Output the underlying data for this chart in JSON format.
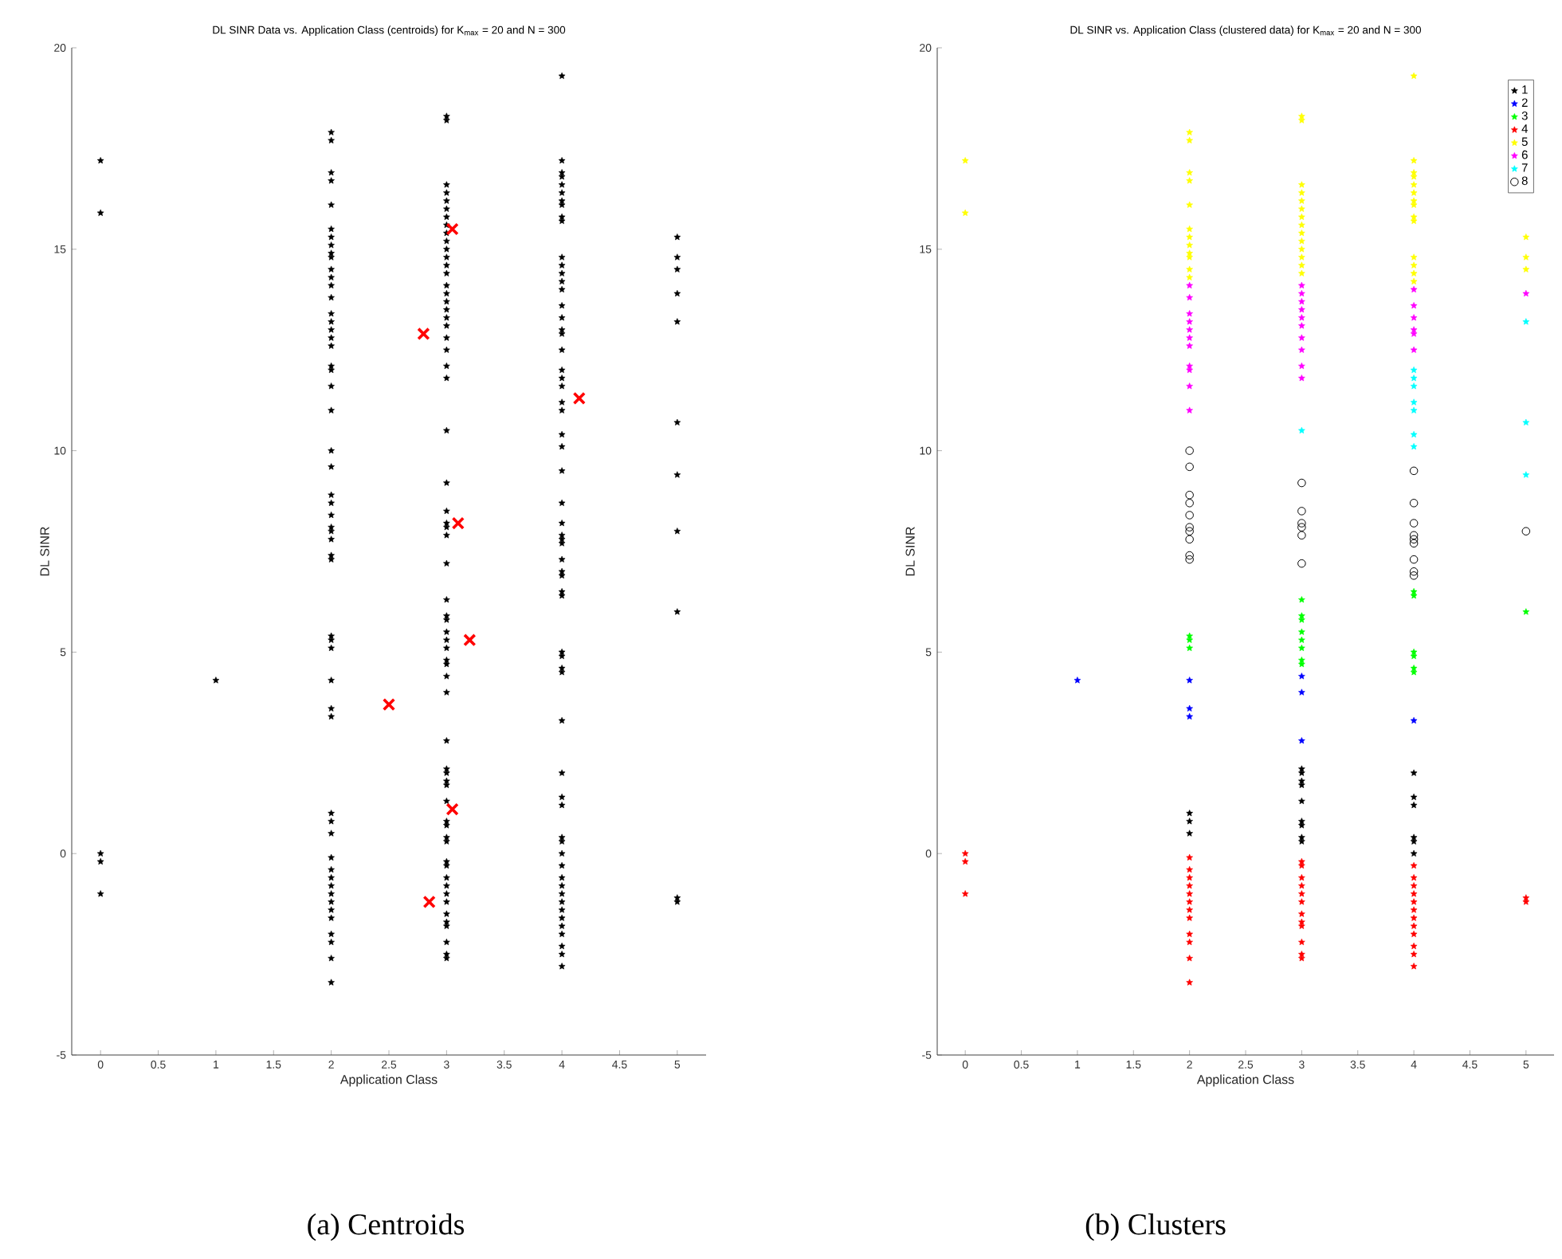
{
  "chart_data": [
    {
      "type": "scatter",
      "title": "DL SINR Data vs. Application Class (centroids) for K$_{max}$ = 20 and N = 300",
      "xlabel": "Application Class",
      "ylabel": "DL SINR",
      "annotations": [
        "(a) Centroids"
      ],
      "xlim": [
        -0.25,
        5.25
      ],
      "ylim": [
        -5,
        20
      ],
      "xticks": [
        0,
        0.5,
        1,
        1.5,
        2,
        2.5,
        3,
        3.5,
        4,
        4.5,
        5
      ],
      "yticks": [
        -5,
        0,
        5,
        10,
        15,
        20
      ],
      "series": [
        {
          "color": "#000000",
          "marker": "star",
          "x": [
            0,
            0,
            0,
            0,
            0
          ],
          "values": [
            17.2,
            15.9,
            0.0,
            -0.2,
            -1.0
          ]
        },
        {
          "color": "#000000",
          "marker": "star",
          "x": [
            1
          ],
          "values": [
            4.3
          ]
        },
        {
          "color": "#000000",
          "marker": "star",
          "x": [
            2,
            2,
            2,
            2,
            2,
            2,
            2,
            2,
            2,
            2,
            2,
            2,
            2,
            2,
            2,
            2,
            2,
            2,
            2,
            2,
            2,
            2,
            2,
            2,
            2,
            2,
            2,
            2,
            2,
            2,
            2,
            2,
            2,
            2,
            2,
            2,
            2,
            2,
            2,
            2,
            2,
            2,
            2,
            2,
            2,
            2,
            2,
            2,
            2,
            2,
            2,
            2,
            2,
            2
          ],
          "values": [
            17.9,
            17.7,
            16.9,
            16.7,
            16.1,
            15.5,
            15.3,
            15.1,
            14.9,
            14.8,
            14.5,
            14.3,
            14.1,
            13.8,
            13.4,
            13.2,
            13.0,
            12.8,
            12.6,
            12.1,
            12.0,
            11.6,
            11.0,
            10.0,
            9.6,
            8.9,
            8.7,
            8.4,
            8.1,
            8.0,
            7.8,
            7.4,
            7.3,
            5.4,
            5.3,
            5.1,
            4.3,
            3.6,
            3.4,
            1.0,
            0.8,
            0.5,
            -0.1,
            -0.4,
            -0.6,
            -0.8,
            -1.0,
            -1.2,
            -1.4,
            -1.6,
            -2.0,
            -2.2,
            -2.6,
            -3.2
          ]
        },
        {
          "color": "#000000",
          "marker": "star",
          "x": [
            3,
            3,
            3,
            3,
            3,
            3,
            3,
            3,
            3,
            3,
            3,
            3,
            3,
            3,
            3,
            3,
            3,
            3,
            3,
            3,
            3,
            3,
            3,
            3,
            3,
            3,
            3,
            3,
            3,
            3,
            3,
            3,
            3,
            3,
            3,
            3,
            3,
            3,
            3,
            3,
            3,
            3,
            3,
            3,
            3,
            3,
            3,
            3,
            3,
            3,
            3,
            3,
            3,
            3,
            3,
            3,
            3,
            3,
            3,
            3,
            3,
            3,
            3
          ],
          "values": [
            18.3,
            18.2,
            16.6,
            16.4,
            16.2,
            16.0,
            15.8,
            15.6,
            15.4,
            15.2,
            15.0,
            14.8,
            14.6,
            14.4,
            14.1,
            13.9,
            13.7,
            13.5,
            13.3,
            13.1,
            12.8,
            12.5,
            12.1,
            11.8,
            10.5,
            9.2,
            8.5,
            8.2,
            8.1,
            7.9,
            7.2,
            6.3,
            5.9,
            5.8,
            5.5,
            5.3,
            5.1,
            4.8,
            4.7,
            4.4,
            4.0,
            2.8,
            2.1,
            2.0,
            1.8,
            1.7,
            1.3,
            0.8,
            0.7,
            0.4,
            0.3,
            -0.2,
            -0.3,
            -0.6,
            -0.8,
            -1.0,
            -1.2,
            -1.5,
            -1.7,
            -1.8,
            -2.2,
            -2.5,
            -2.6
          ]
        },
        {
          "color": "#000000",
          "marker": "star",
          "x": [
            4,
            4,
            4,
            4,
            4,
            4,
            4,
            4,
            4,
            4,
            4,
            4,
            4,
            4,
            4,
            4,
            4,
            4,
            4,
            4,
            4,
            4,
            4,
            4,
            4,
            4,
            4,
            4,
            4,
            4,
            4,
            4,
            4,
            4,
            4,
            4,
            4,
            4,
            4,
            4,
            4,
            4,
            4,
            4,
            4,
            4,
            4,
            4,
            4,
            4,
            4,
            4,
            4,
            4,
            4,
            4,
            4,
            4,
            4,
            4,
            4
          ],
          "values": [
            19.3,
            17.2,
            16.9,
            16.8,
            16.6,
            16.4,
            16.2,
            16.1,
            15.8,
            15.7,
            14.8,
            14.6,
            14.4,
            14.2,
            14.0,
            13.6,
            13.3,
            13.0,
            12.9,
            12.5,
            12.0,
            11.8,
            11.6,
            11.2,
            11.0,
            10.4,
            10.1,
            9.5,
            8.7,
            8.2,
            7.9,
            7.8,
            7.7,
            7.3,
            7.0,
            6.9,
            6.5,
            6.4,
            5.0,
            4.9,
            4.6,
            4.5,
            3.3,
            2.0,
            1.4,
            1.2,
            0.4,
            0.3,
            0.0,
            -0.3,
            -0.6,
            -0.8,
            -1.0,
            -1.2,
            -1.4,
            -1.6,
            -1.8,
            -2.0,
            -2.3,
            -2.5,
            -2.8
          ]
        },
        {
          "color": "#000000",
          "marker": "star",
          "x": [
            5,
            5,
            5,
            5,
            5,
            5,
            5,
            5,
            5,
            5,
            5
          ],
          "values": [
            15.3,
            14.8,
            14.5,
            13.9,
            13.2,
            10.7,
            9.4,
            8.0,
            6.0,
            -1.1,
            -1.2
          ]
        },
        {
          "color": "#ff0000",
          "marker": "cross",
          "x": [
            3.05,
            2.8,
            4.15,
            3.1,
            3.2,
            2.5,
            3.05,
            2.85
          ],
          "values": [
            15.5,
            12.9,
            11.3,
            8.2,
            5.3,
            3.7,
            1.1,
            -1.2
          ]
        }
      ]
    },
    {
      "type": "scatter",
      "title": "DL SINR vs. Application Class (clustered data) for K$_{max}$ = 20 and N = 300",
      "xlabel": "Application Class",
      "ylabel": "DL SINR",
      "annotations": [
        "(b) Clusters"
      ],
      "legend": "top right",
      "xlim": [
        -0.25,
        5.25
      ],
      "ylim": [
        -5,
        20
      ],
      "xticks": [
        0,
        0.5,
        1,
        1.5,
        2,
        2.5,
        3,
        3.5,
        4,
        4.5,
        5
      ],
      "yticks": [
        -5,
        0,
        5,
        10,
        15,
        20
      ],
      "series": [
        {
          "name": "1",
          "color": "#000000",
          "marker": "star",
          "x": [
            2,
            2,
            2,
            3,
            3,
            3,
            3,
            3,
            3,
            3,
            3,
            3,
            4,
            4,
            4,
            4,
            4,
            4
          ],
          "values": [
            1.0,
            0.8,
            0.5,
            2.1,
            2.0,
            1.8,
            1.7,
            1.3,
            0.8,
            0.7,
            0.4,
            0.3,
            2.0,
            1.4,
            1.2,
            0.4,
            0.3,
            0.0
          ]
        },
        {
          "name": "2",
          "color": "#0000ff",
          "marker": "star",
          "x": [
            1,
            2,
            2,
            2,
            3,
            3,
            3,
            4
          ],
          "values": [
            4.3,
            4.3,
            3.6,
            3.4,
            4.4,
            4.0,
            2.8,
            3.3
          ]
        },
        {
          "name": "3",
          "color": "#00ff00",
          "marker": "star",
          "x": [
            2,
            2,
            2,
            3,
            3,
            3,
            3,
            3,
            3,
            3,
            3,
            4,
            4,
            4,
            4,
            4,
            4,
            5
          ],
          "values": [
            5.4,
            5.3,
            5.1,
            6.3,
            5.9,
            5.8,
            5.5,
            5.3,
            5.1,
            4.8,
            4.7,
            6.5,
            6.4,
            5.0,
            4.9,
            4.6,
            4.5,
            6.0
          ]
        },
        {
          "name": "4",
          "color": "#ff0000",
          "marker": "star",
          "x": [
            0,
            0,
            0,
            2,
            2,
            2,
            2,
            2,
            2,
            2,
            2,
            2,
            2,
            2,
            2,
            3,
            3,
            3,
            3,
            3,
            3,
            3,
            3,
            3,
            3,
            3,
            3,
            4,
            4,
            4,
            4,
            4,
            4,
            4,
            4,
            4,
            4,
            4,
            4,
            5,
            5
          ],
          "values": [
            0.0,
            -0.2,
            -1.0,
            -0.1,
            -0.4,
            -0.6,
            -0.8,
            -1.0,
            -1.2,
            -1.4,
            -1.6,
            -2.0,
            -2.2,
            -2.6,
            -3.2,
            -0.2,
            -0.3,
            -0.6,
            -0.8,
            -1.0,
            -1.2,
            -1.5,
            -1.7,
            -1.8,
            -2.2,
            -2.5,
            -2.6,
            -0.3,
            -0.6,
            -0.8,
            -1.0,
            -1.2,
            -1.4,
            -1.6,
            -1.8,
            -2.0,
            -2.3,
            -2.5,
            -2.8,
            -1.1,
            -1.2
          ]
        },
        {
          "name": "5",
          "color": "#ffff00",
          "marker": "star",
          "x": [
            0,
            0,
            2,
            2,
            2,
            2,
            2,
            2,
            2,
            2,
            2,
            2,
            2,
            2,
            3,
            3,
            3,
            3,
            3,
            3,
            3,
            3,
            3,
            3,
            3,
            3,
            3,
            3,
            4,
            4,
            4,
            4,
            4,
            4,
            4,
            4,
            4,
            4,
            4,
            4,
            4,
            4,
            5,
            5,
            5
          ],
          "values": [
            17.2,
            15.9,
            17.9,
            17.7,
            16.9,
            16.7,
            16.1,
            15.5,
            15.3,
            15.1,
            14.9,
            14.8,
            14.5,
            14.3,
            18.3,
            18.2,
            16.6,
            16.4,
            16.2,
            16.0,
            15.8,
            15.6,
            15.4,
            15.2,
            15.0,
            14.8,
            14.6,
            14.4,
            19.3,
            17.2,
            16.9,
            16.8,
            16.6,
            16.4,
            16.2,
            16.1,
            15.8,
            15.7,
            14.8,
            14.6,
            14.4,
            14.2,
            15.3,
            14.8,
            14.5
          ]
        },
        {
          "name": "6",
          "color": "#ff00ff",
          "marker": "star",
          "x": [
            2,
            2,
            2,
            2,
            2,
            2,
            2,
            2,
            2,
            2,
            2,
            3,
            3,
            3,
            3,
            3,
            3,
            3,
            3,
            3,
            3,
            4,
            4,
            4,
            4,
            4,
            4,
            5
          ],
          "values": [
            14.1,
            13.8,
            13.4,
            13.2,
            13.0,
            12.8,
            12.6,
            12.1,
            12.0,
            11.6,
            11.0,
            14.1,
            13.9,
            13.7,
            13.5,
            13.3,
            13.1,
            12.8,
            12.5,
            12.1,
            11.8,
            14.0,
            13.6,
            13.3,
            13.0,
            12.9,
            12.5,
            13.9
          ]
        },
        {
          "name": "7",
          "color": "#00ffff",
          "marker": "star",
          "x": [
            3,
            4,
            4,
            4,
            4,
            4,
            4,
            4,
            5,
            5,
            5
          ],
          "values": [
            10.5,
            12.0,
            11.8,
            11.6,
            11.2,
            11.0,
            10.4,
            10.1,
            13.2,
            10.7,
            9.4
          ]
        },
        {
          "name": "8",
          "color": "#000000",
          "marker": "circle",
          "x": [
            2,
            2,
            2,
            2,
            2,
            2,
            2,
            2,
            2,
            2,
            3,
            3,
            3,
            3,
            3,
            3,
            4,
            4,
            4,
            4,
            4,
            4,
            4,
            4,
            4,
            5
          ],
          "values": [
            10.0,
            9.6,
            8.9,
            8.7,
            8.4,
            8.1,
            8.0,
            7.8,
            7.4,
            7.3,
            9.2,
            8.5,
            8.2,
            8.1,
            7.9,
            7.2,
            9.5,
            8.7,
            8.2,
            7.9,
            7.8,
            7.7,
            7.3,
            7.0,
            6.9,
            8.0
          ]
        }
      ]
    }
  ]
}
